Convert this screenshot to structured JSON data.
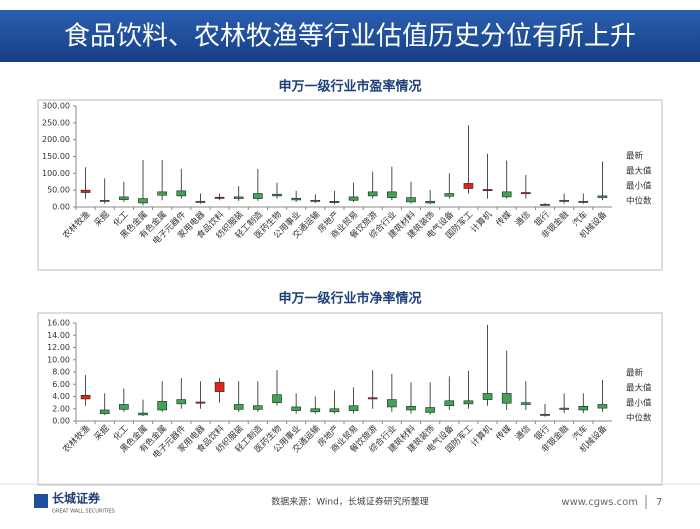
{
  "header": {
    "title": "食品饮料、农林牧渔等行业估值历史分位有所上升"
  },
  "chart_data": [
    {
      "type": "candlestick",
      "title": "申万一级行业市盈率情况",
      "categories": [
        "农林牧渔",
        "采掘",
        "化工",
        "黑色金属",
        "有色金属",
        "电子元器件",
        "家用电器",
        "食品饮料",
        "纺织服装",
        "轻工制造",
        "医药生物",
        "公用事业",
        "交通运输",
        "房地产",
        "商业贸易",
        "餐饮旅游",
        "综合行业",
        "建筑材料",
        "建筑装饰",
        "电气设备",
        "国防军工",
        "计算机",
        "传媒",
        "通信",
        "银行",
        "非银金融",
        "汽车",
        "机械设备"
      ],
      "series": [
        {
          "name": "最新",
          "values": [
            50,
            18,
            22,
            12,
            35,
            33,
            14,
            29,
            25,
            25,
            33,
            21,
            17,
            13,
            20,
            33,
            28,
            15,
            12,
            32,
            70,
            52,
            30,
            43,
            6,
            18,
            15,
            28
          ]
        },
        {
          "name": "最大值",
          "values": [
            118,
            85,
            75,
            140,
            140,
            113,
            40,
            40,
            62,
            113,
            72,
            48,
            38,
            48,
            72,
            105,
            120,
            75,
            50,
            100,
            243,
            158,
            138,
            95,
            12,
            40,
            40,
            135
          ]
        },
        {
          "name": "最小值",
          "values": [
            25,
            10,
            15,
            5,
            20,
            25,
            10,
            20,
            18,
            18,
            25,
            15,
            12,
            8,
            15,
            25,
            20,
            10,
            8,
            25,
            40,
            25,
            25,
            25,
            5,
            10,
            10,
            20
          ]
        },
        {
          "name": "中位数",
          "values": [
            43,
            20,
            30,
            25,
            45,
            48,
            17,
            27,
            30,
            40,
            38,
            26,
            20,
            17,
            30,
            45,
            45,
            28,
            17,
            40,
            55,
            50,
            45,
            40,
            8,
            20,
            17,
            33
          ]
        }
      ],
      "up_color": "#e0261c",
      "down_color": "#3ea552",
      "ylim": [
        0,
        300
      ],
      "yticks": [
        {
          "value": 0,
          "label": "0.00"
        },
        {
          "value": 50,
          "label": "50.00"
        },
        {
          "value": 100,
          "label": "100.00"
        },
        {
          "value": 150,
          "label": "150.00"
        },
        {
          "value": 200,
          "label": "200.00"
        },
        {
          "value": 250,
          "label": "250.00"
        },
        {
          "value": 300,
          "label": "300.00"
        }
      ]
    },
    {
      "type": "candlestick",
      "title": "申万一级行业市净率情况",
      "categories": [
        "农林牧渔",
        "采掘",
        "化工",
        "黑色金属",
        "有色金属",
        "电子元器件",
        "家用电器",
        "食品饮料",
        "纺织服装",
        "轻工制造",
        "医药生物",
        "公用事业",
        "交通运输",
        "房地产",
        "商业贸易",
        "餐饮旅游",
        "综合行业",
        "建筑材料",
        "建筑装饰",
        "电气设备",
        "国防军工",
        "计算机",
        "传媒",
        "通信",
        "银行",
        "非银金融",
        "汽车",
        "机械设备"
      ],
      "series": [
        {
          "name": "最新",
          "values": [
            4.2,
            1.2,
            1.9,
            1.0,
            1.8,
            2.8,
            3.1,
            6.3,
            1.9,
            1.9,
            3.0,
            1.7,
            1.5,
            1.5,
            1.7,
            3.8,
            2.3,
            1.8,
            1.4,
            2.5,
            2.8,
            3.5,
            2.9,
            2.7,
            0.9,
            1.9,
            1.8,
            2.1
          ]
        },
        {
          "name": "最大值",
          "values": [
            7.5,
            4.5,
            5.3,
            3.5,
            6.5,
            7.0,
            6.5,
            7.0,
            6.5,
            6.5,
            8.3,
            4.5,
            4.0,
            5.0,
            5.5,
            8.3,
            7.7,
            6.3,
            6.3,
            7.3,
            8.2,
            15.7,
            11.5,
            6.5,
            2.8,
            4.5,
            4.5,
            6.7
          ]
        },
        {
          "name": "最小值",
          "values": [
            2.5,
            1.0,
            1.5,
            0.8,
            1.5,
            2.0,
            2.0,
            3.0,
            1.5,
            1.5,
            2.5,
            1.2,
            1.2,
            1.2,
            1.2,
            2.0,
            1.5,
            1.2,
            1.0,
            1.8,
            2.0,
            2.5,
            1.8,
            1.8,
            0.7,
            1.3,
            1.3,
            1.5
          ]
        },
        {
          "name": "中位数",
          "values": [
            3.6,
            1.8,
            2.7,
            1.3,
            3.2,
            3.5,
            2.9,
            4.8,
            2.7,
            2.5,
            4.3,
            2.3,
            2.0,
            2.0,
            2.5,
            3.6,
            3.5,
            2.4,
            2.2,
            3.3,
            3.3,
            4.5,
            4.5,
            3.0,
            1.1,
            2.1,
            2.4,
            2.7
          ]
        }
      ],
      "up_color": "#e0261c",
      "down_color": "#3ea552",
      "ylim": [
        0,
        16
      ],
      "yticks": [
        {
          "value": 0,
          "label": "0.00"
        },
        {
          "value": 2,
          "label": "2.00"
        },
        {
          "value": 4,
          "label": "4.00"
        },
        {
          "value": 6,
          "label": "6.00"
        },
        {
          "value": 8,
          "label": "8.00"
        },
        {
          "value": 10,
          "label": "10.00"
        },
        {
          "value": 12,
          "label": "12.00"
        },
        {
          "value": 14,
          "label": "14.00"
        },
        {
          "value": 16,
          "label": "16.00"
        }
      ]
    }
  ],
  "footer": {
    "logo": "长城证券",
    "logo_en": "GREAT WALL SECURITIES",
    "source": "数据来源：Wind，长城证券研究所整理",
    "url": "www.cgws.com",
    "page": 7
  }
}
